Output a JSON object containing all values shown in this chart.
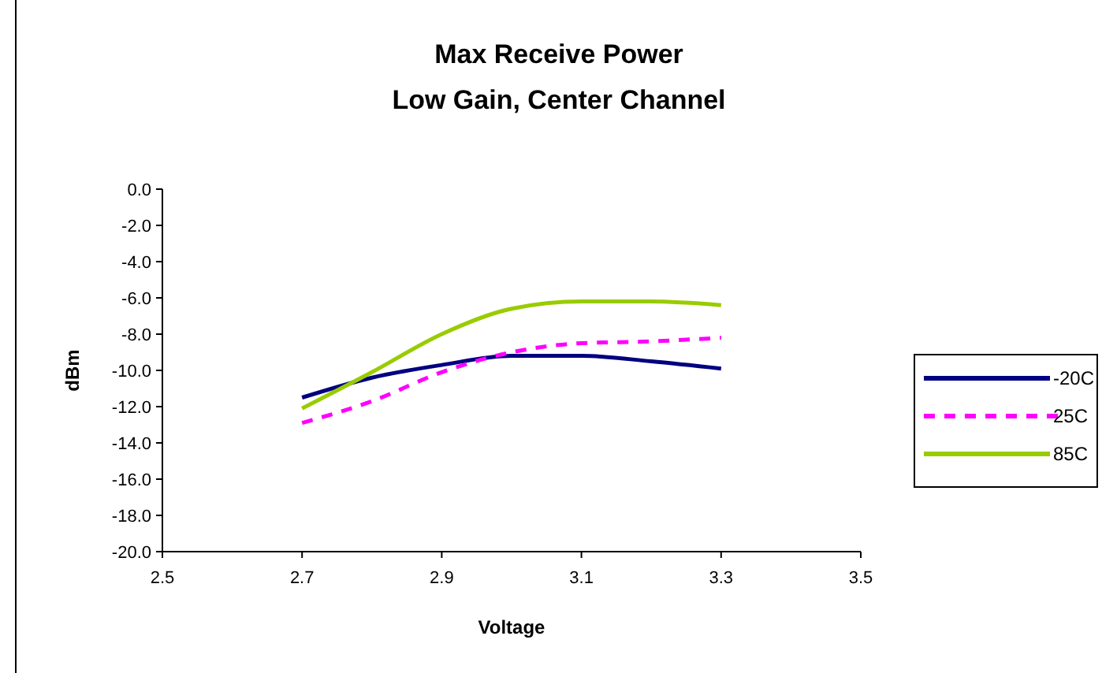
{
  "chart_data": {
    "type": "line",
    "title": "Max Receive Power",
    "subtitle": "Low Gain, Center Channel",
    "xlabel": "Voltage",
    "ylabel": "dBm",
    "x": [
      2.7,
      2.8,
      2.9,
      3.0,
      3.1,
      3.2,
      3.3
    ],
    "series": [
      {
        "name": "-20C",
        "color": "#000080",
        "values": [
          -11.5,
          -10.4,
          -9.7,
          -9.2,
          -9.2,
          -9.5,
          -9.9
        ]
      },
      {
        "name": "25C",
        "color": "#ff00ff",
        "line_style": "dashed",
        "values": [
          -12.9,
          -11.7,
          -10.1,
          -9.0,
          -8.5,
          -8.4,
          -8.2
        ]
      },
      {
        "name": "85C",
        "color": "#99cc00",
        "values": [
          -12.1,
          -10.1,
          -8.0,
          -6.6,
          -6.2,
          -6.2,
          -6.4
        ]
      }
    ],
    "xlim": [
      2.5,
      3.5
    ],
    "xticks": [
      {
        "value": 2.5,
        "label": "2.5"
      },
      {
        "value": 2.7,
        "label": "2.7"
      },
      {
        "value": 2.9,
        "label": "2.9"
      },
      {
        "value": 3.1,
        "label": "3.1"
      },
      {
        "value": 3.3,
        "label": "3.3"
      },
      {
        "value": 3.5,
        "label": "3.5"
      }
    ],
    "ylim": [
      -20,
      0
    ],
    "yticks": [
      {
        "value": 0,
        "label": "0.0"
      },
      {
        "value": -2,
        "label": "-2.0"
      },
      {
        "value": -4,
        "label": "-4.0"
      },
      {
        "value": -6,
        "label": "-6.0"
      },
      {
        "value": -8,
        "label": "-8.0"
      },
      {
        "value": -10,
        "label": "-10.0"
      },
      {
        "value": -12,
        "label": "-12.0"
      },
      {
        "value": -14,
        "label": "-14.0"
      },
      {
        "value": -16,
        "label": "-16.0"
      },
      {
        "value": -18,
        "label": "-18.0"
      },
      {
        "value": -20,
        "label": "-20.0"
      }
    ],
    "legend": "right",
    "marker": "none",
    "line_style": "solid"
  }
}
